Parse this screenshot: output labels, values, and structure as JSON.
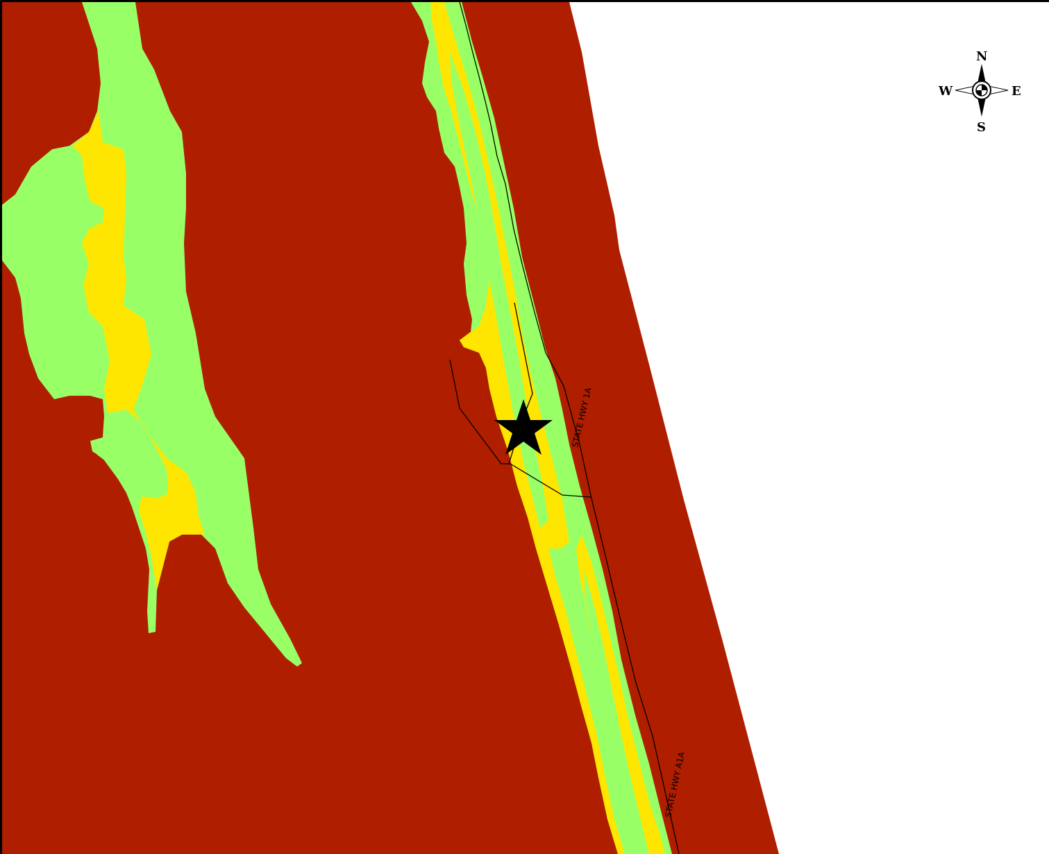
{
  "map": {
    "colors": {
      "land": "#b01e00",
      "water": "#ffffff",
      "marsh": "#99ff66",
      "beach": "#ffe600",
      "road": "#000000",
      "marker": "#000000"
    },
    "roads": [
      {
        "name": "road-1a",
        "label": "STATE HWY 1A"
      },
      {
        "name": "road-a1a",
        "label": "STATE HWY A1A"
      }
    ],
    "marker": {
      "icon": "star-icon"
    }
  },
  "compass": {
    "icon": "compass-rose-icon",
    "north": "N",
    "south": "S",
    "east": "E",
    "west": "W"
  }
}
